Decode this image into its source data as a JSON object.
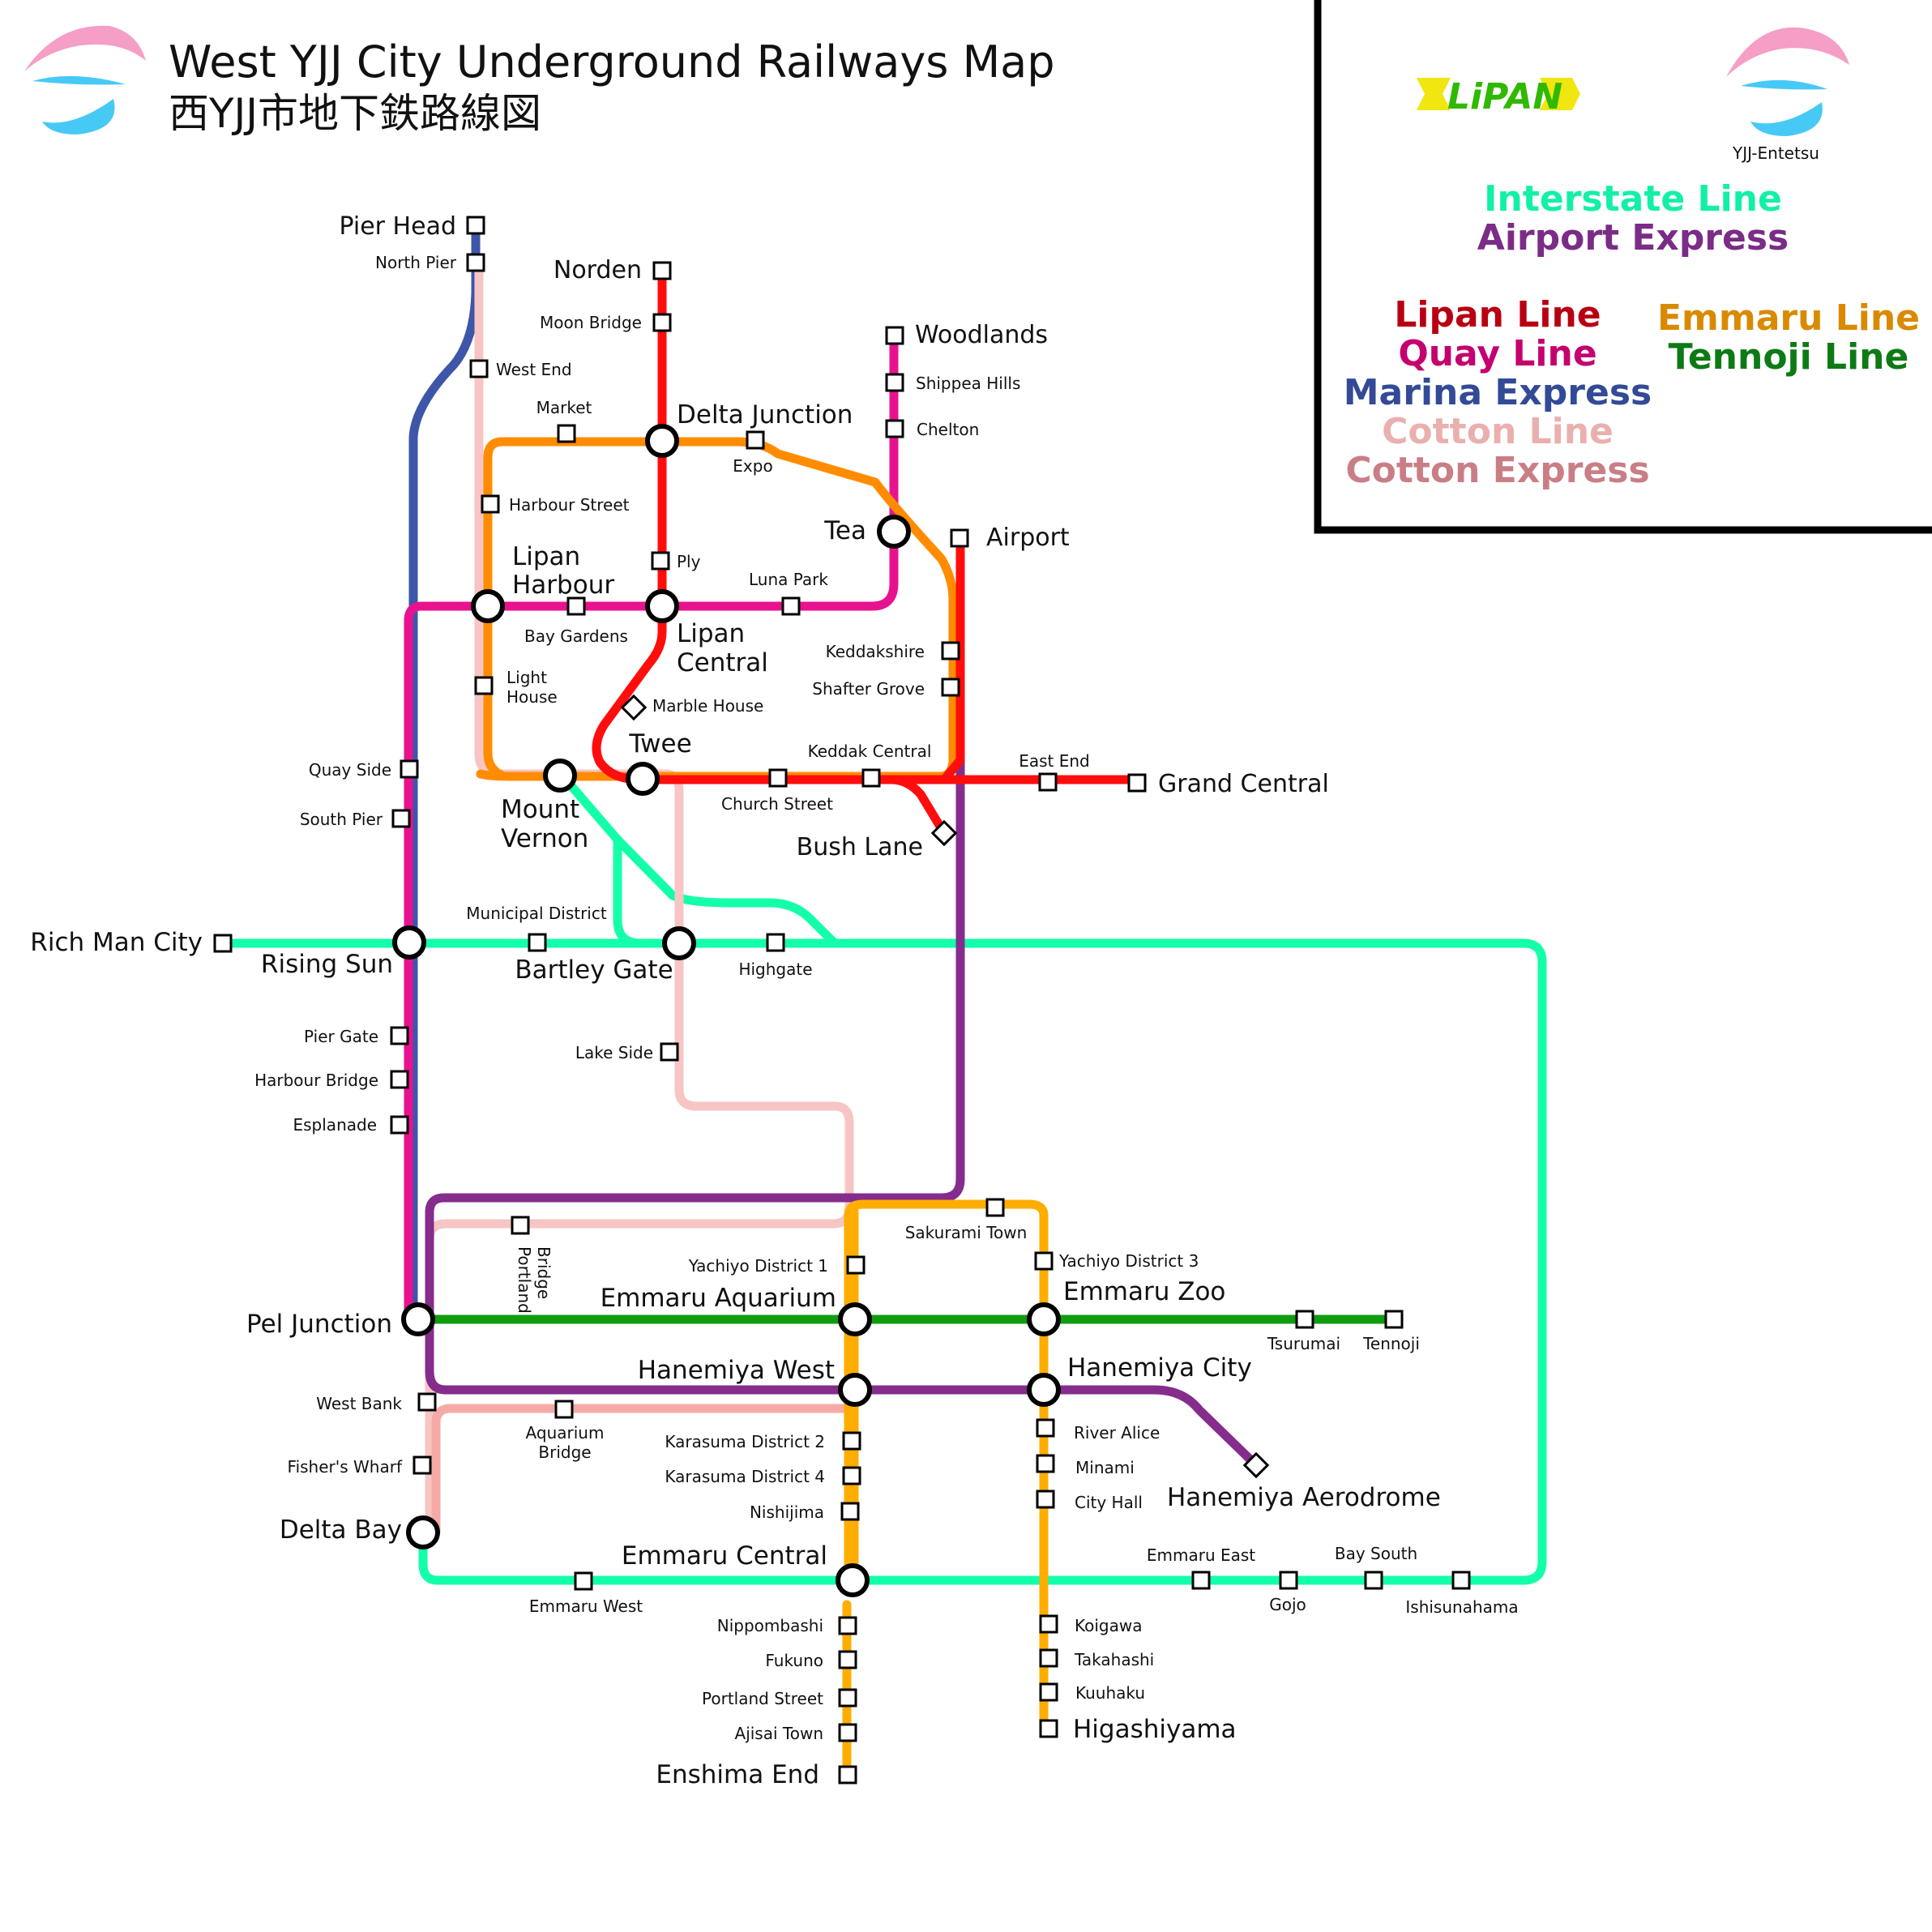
{
  "title": {
    "en": "West YJJ City Underground Railways Map",
    "ja": "西YJJ市地下鉄路線図"
  },
  "operators": {
    "lipan_logo_text": "LiPAN",
    "entetsu_name": "YJJ-Entetsu"
  },
  "legend": {
    "entetsu_lines": [
      {
        "name": "Interstate Line",
        "color": "#12f0a8"
      },
      {
        "name": "Airport Express",
        "color": "#7a2c86"
      }
    ],
    "lipan_lines_col1": [
      {
        "name": "Lipan Line",
        "color": "#b80012"
      },
      {
        "name": "Quay Line",
        "color": "#c4006e"
      },
      {
        "name": "Marina Express",
        "color": "#334a96"
      },
      {
        "name": "Cotton Line",
        "color": "#e9b0ae"
      },
      {
        "name": "Cotton Express",
        "color": "#c97e86"
      }
    ],
    "lipan_lines_col2": [
      {
        "name": "Emmaru Line",
        "color": "#d98a00"
      },
      {
        "name": "Tennoji Line",
        "color": "#0e7a15"
      }
    ]
  },
  "line_colors": {
    "lipan": "#ff0d0d",
    "quay": "#e8128f",
    "marina": "#3e56a8",
    "cotton": "#f7c5c3",
    "cotton_express": "#f5aaa8",
    "emmaru": "#ffad00",
    "emmaru_loop": "#ff8c00",
    "tennoji": "#119c0f",
    "interstate": "#14ffa9",
    "airport": "#852c8c"
  },
  "stations": [
    {
      "id": "pier-head",
      "name": "Pier Head"
    },
    {
      "id": "north-pier",
      "name": "North Pier"
    },
    {
      "id": "west-end",
      "name": "West End"
    },
    {
      "id": "market",
      "name": "Market"
    },
    {
      "id": "harbour-street",
      "name": "Harbour Street"
    },
    {
      "id": "lipan-harbour",
      "name": "Lipan Harbour"
    },
    {
      "id": "bay-gardens",
      "name": "Bay Gardens"
    },
    {
      "id": "light-house",
      "name": "Light House"
    },
    {
      "id": "norden",
      "name": "Norden"
    },
    {
      "id": "moon-bridge",
      "name": "Moon Bridge"
    },
    {
      "id": "delta-junction",
      "name": "Delta Junction"
    },
    {
      "id": "expo",
      "name": "Expo"
    },
    {
      "id": "ply",
      "name": "Ply"
    },
    {
      "id": "lipan-central",
      "name": "Lipan Central"
    },
    {
      "id": "luna-park",
      "name": "Luna Park"
    },
    {
      "id": "marble-house",
      "name": "Marble House"
    },
    {
      "id": "woodlands",
      "name": "Woodlands"
    },
    {
      "id": "shippea-hills",
      "name": "Shippea Hills"
    },
    {
      "id": "chelton",
      "name": "Chelton"
    },
    {
      "id": "tea",
      "name": "Tea"
    },
    {
      "id": "airport",
      "name": "Airport"
    },
    {
      "id": "keddakshire",
      "name": "Keddakshire"
    },
    {
      "id": "shafter-grove",
      "name": "Shafter Grove"
    },
    {
      "id": "twee",
      "name": "Twee"
    },
    {
      "id": "keddak-central",
      "name": "Keddak Central"
    },
    {
      "id": "church-street",
      "name": "Church Street"
    },
    {
      "id": "east-end",
      "name": "East End"
    },
    {
      "id": "grand-central",
      "name": "Grand Central"
    },
    {
      "id": "bush-lane",
      "name": "Bush Lane"
    },
    {
      "id": "mount-vernon",
      "name": "Mount Vernon"
    },
    {
      "id": "quay-side",
      "name": "Quay Side"
    },
    {
      "id": "south-pier",
      "name": "South Pier"
    },
    {
      "id": "rich-man-city",
      "name": "Rich Man City"
    },
    {
      "id": "rising-sun",
      "name": "Rising Sun"
    },
    {
      "id": "municipal-district",
      "name": "Municipal District"
    },
    {
      "id": "bartley-gate",
      "name": "Bartley Gate"
    },
    {
      "id": "highgate",
      "name": "Highgate"
    },
    {
      "id": "lake-side",
      "name": "Lake Side"
    },
    {
      "id": "pier-gate",
      "name": "Pier Gate"
    },
    {
      "id": "harbour-bridge",
      "name": "Harbour Bridge"
    },
    {
      "id": "esplanade",
      "name": "Esplanade"
    },
    {
      "id": "portland-bridge",
      "name": "Portland Bridge"
    },
    {
      "id": "sakurami-town",
      "name": "Sakurami Town"
    },
    {
      "id": "yachiyo-1",
      "name": "Yachiyo District 1"
    },
    {
      "id": "yachiyo-3",
      "name": "Yachiyo District 3"
    },
    {
      "id": "emmaru-aquarium",
      "name": "Emmaru Aquarium"
    },
    {
      "id": "emmaru-zoo",
      "name": "Emmaru Zoo"
    },
    {
      "id": "pel-junction",
      "name": "Pel Junction"
    },
    {
      "id": "tsurumai",
      "name": "Tsurumai"
    },
    {
      "id": "tennoji",
      "name": "Tennoji"
    },
    {
      "id": "hanemiya-west",
      "name": "Hanemiya West"
    },
    {
      "id": "hanemiya-city",
      "name": "Hanemiya City"
    },
    {
      "id": "west-bank",
      "name": "West Bank"
    },
    {
      "id": "aquarium-bridge",
      "name": "Aquarium Bridge"
    },
    {
      "id": "river-alice",
      "name": "River Alice"
    },
    {
      "id": "minami",
      "name": "Minami"
    },
    {
      "id": "city-hall",
      "name": "City Hall"
    },
    {
      "id": "hanemiya-aerodrome",
      "name": "Hanemiya Aerodrome"
    },
    {
      "id": "karasuma-2",
      "name": "Karasuma District 2"
    },
    {
      "id": "karasuma-4",
      "name": "Karasuma District 4"
    },
    {
      "id": "nishijima",
      "name": "Nishijima"
    },
    {
      "id": "fishers-wharf",
      "name": "Fisher's Wharf"
    },
    {
      "id": "delta-bay",
      "name": "Delta Bay"
    },
    {
      "id": "emmaru-central",
      "name": "Emmaru Central"
    },
    {
      "id": "emmaru-west",
      "name": "Emmaru West"
    },
    {
      "id": "emmaru-east",
      "name": "Emmaru East"
    },
    {
      "id": "gojo",
      "name": "Gojo"
    },
    {
      "id": "bay-south",
      "name": "Bay South"
    },
    {
      "id": "ishisunahama",
      "name": "Ishisunahama"
    },
    {
      "id": "nippombashi",
      "name": "Nippombashi"
    },
    {
      "id": "fukuno",
      "name": "Fukuno"
    },
    {
      "id": "portland-street",
      "name": "Portland Street"
    },
    {
      "id": "ajisai-town",
      "name": "Ajisai Town"
    },
    {
      "id": "enshima-end",
      "name": "Enshima End"
    },
    {
      "id": "koigawa",
      "name": "Koigawa"
    },
    {
      "id": "takahashi",
      "name": "Takahashi"
    },
    {
      "id": "kuuhaku",
      "name": "Kuuhaku"
    },
    {
      "id": "higashiyama",
      "name": "Higashiyama"
    }
  ]
}
